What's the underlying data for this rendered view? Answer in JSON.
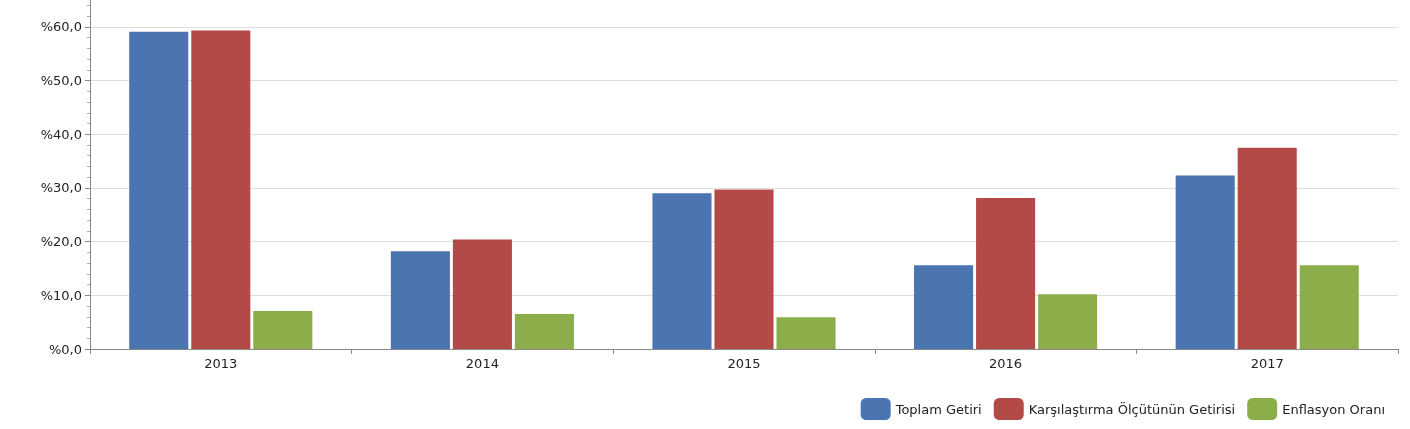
{
  "chart_data": {
    "type": "bar",
    "categories": [
      "2013",
      "2014",
      "2015",
      "2016",
      "2017"
    ],
    "series": [
      {
        "name": "Toplam Getiri",
        "color": "#4a75b0",
        "values": [
          59.1,
          18.2,
          29.0,
          15.6,
          32.3
        ]
      },
      {
        "name": "Karşılaştırma Ölçütünün Getirisi",
        "color": "#b44a48",
        "values": [
          59.3,
          20.4,
          29.7,
          28.1,
          37.5
        ]
      },
      {
        "name": "Enflasyon Oranı",
        "color": "#8bae4a",
        "values": [
          7.1,
          6.5,
          5.9,
          10.2,
          15.6
        ]
      }
    ],
    "ylim": [
      0,
      65
    ],
    "yticks": [
      {
        "value": 0,
        "label": "%0,0"
      },
      {
        "value": 10,
        "label": "%10,0"
      },
      {
        "value": 20,
        "label": "%20,0"
      },
      {
        "value": 30,
        "label": "%30,0"
      },
      {
        "value": 40,
        "label": "%40,0"
      },
      {
        "value": 50,
        "label": "%50,0"
      },
      {
        "value": 60,
        "label": "%60,0"
      }
    ],
    "grid": "y",
    "legend": "bottom right"
  }
}
